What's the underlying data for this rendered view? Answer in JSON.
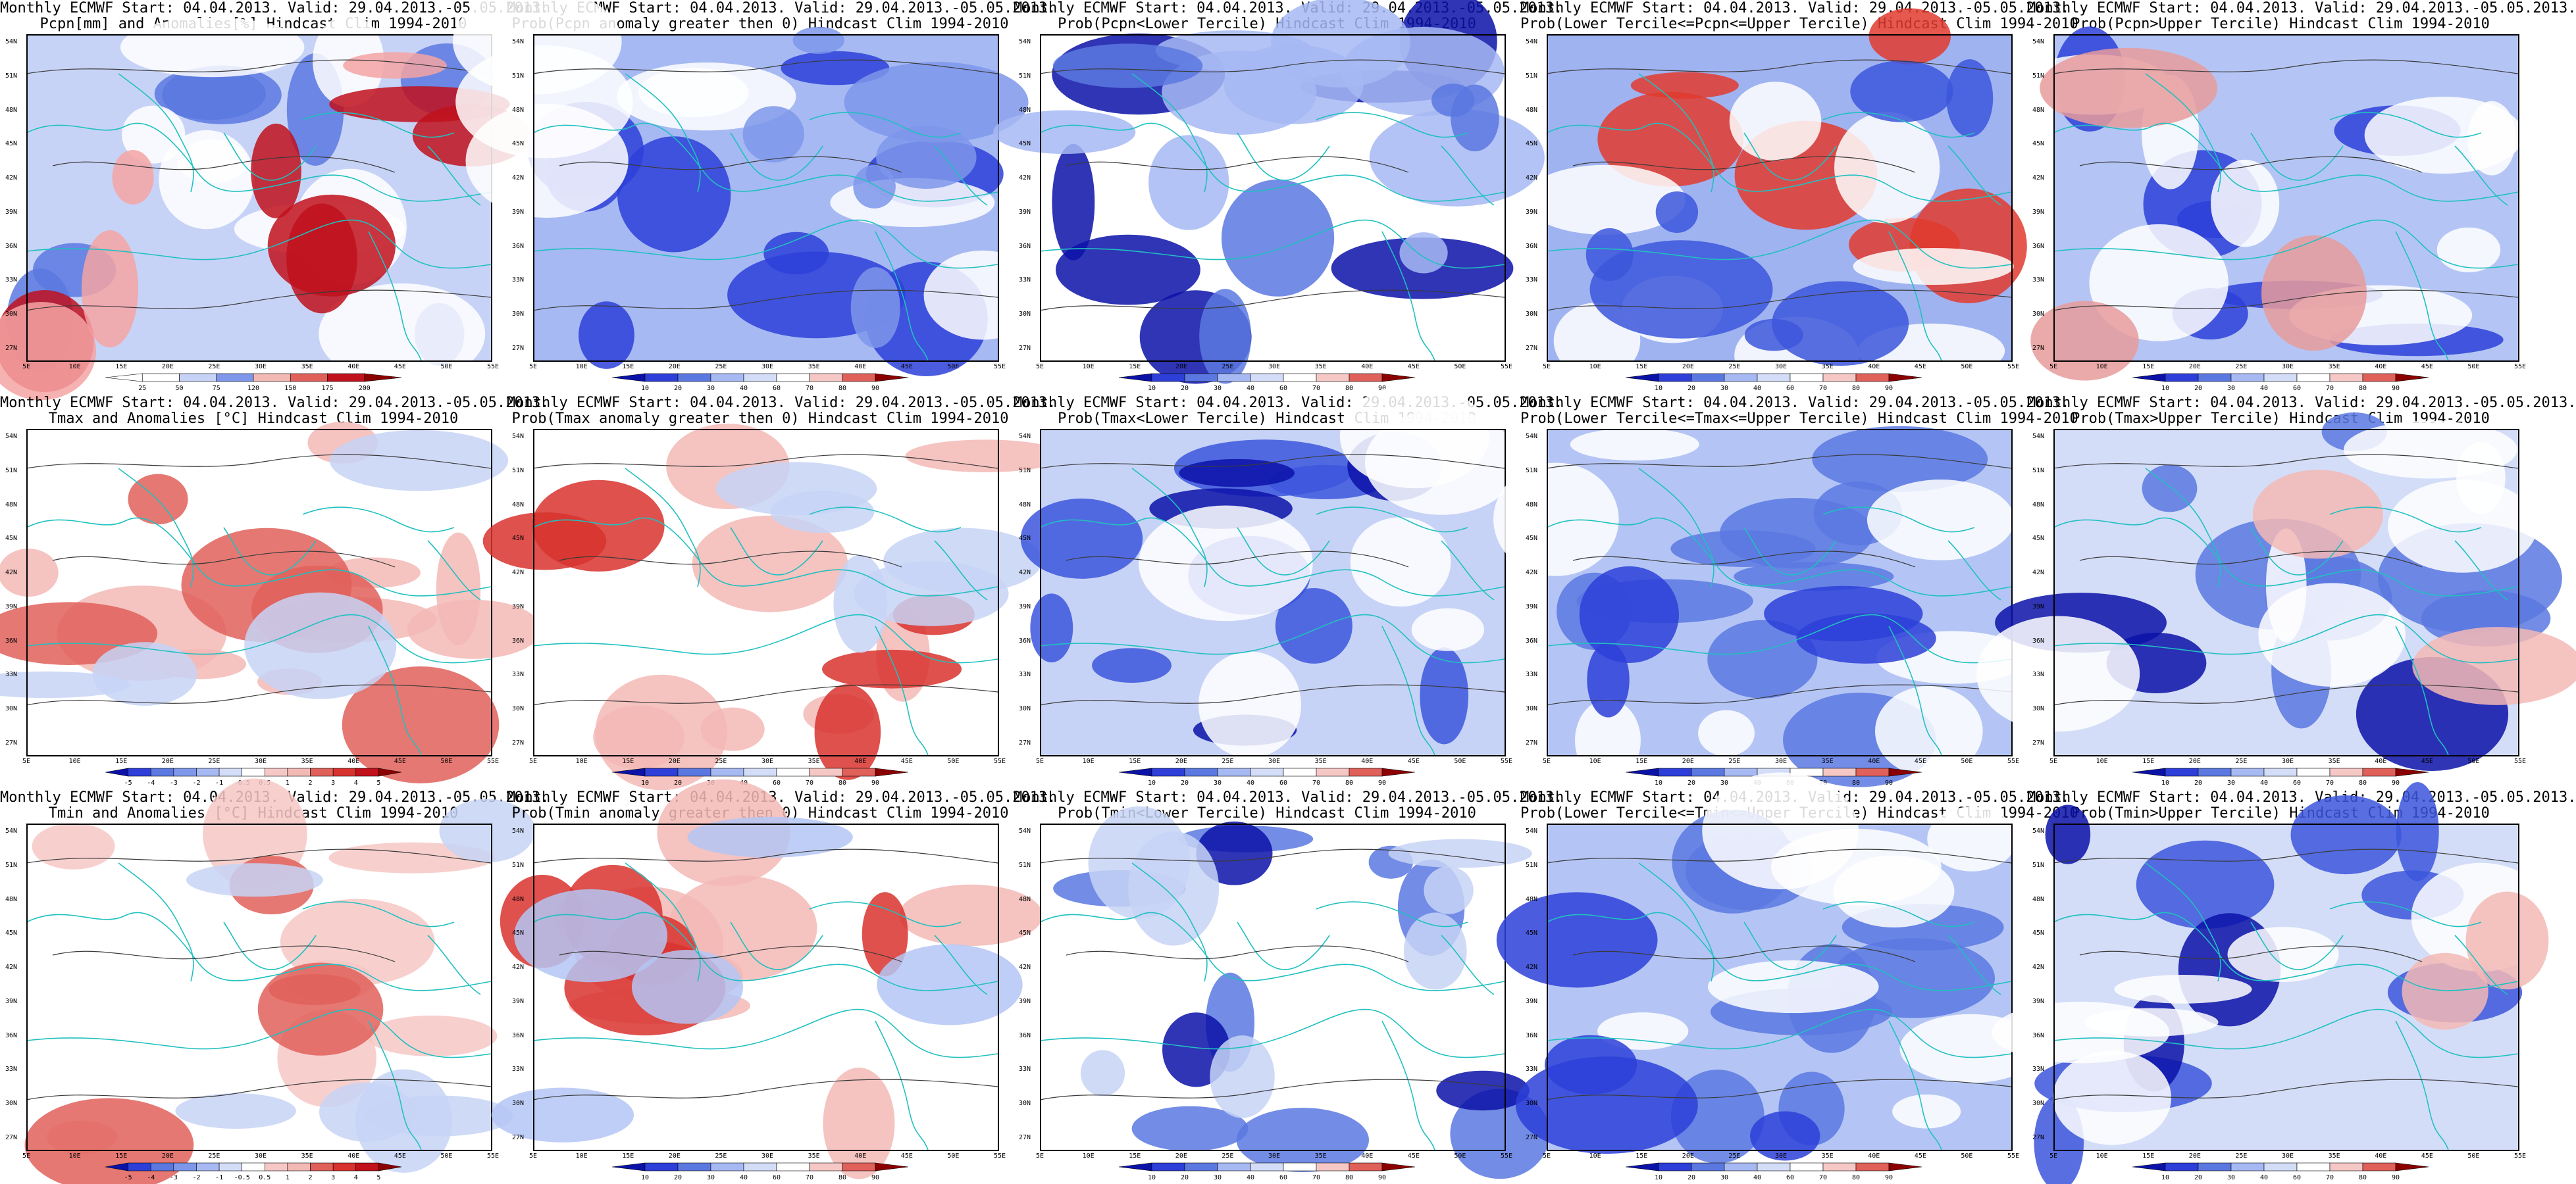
{
  "map_axes": {
    "lat_labels": [
      "54N",
      "51N",
      "48N",
      "45N",
      "42N",
      "39N",
      "36N",
      "33N",
      "30N",
      "27N"
    ],
    "lon_labels": [
      "5E",
      "10E",
      "15E",
      "20E",
      "25E",
      "30E",
      "35E",
      "40E",
      "45E",
      "50E",
      "55E"
    ]
  },
  "colors": {
    "coast": "#20c0c0",
    "contour": "#3a3a3a",
    "frame": "#000000"
  },
  "scales": {
    "pcpn_anom": [
      "25",
      "50",
      "75",
      "120",
      "150",
      "175",
      "200"
    ],
    "t_anom": [
      "-5",
      "-4",
      "-3",
      "-2",
      "-1",
      "-0.5",
      "0.5",
      "1",
      "2",
      "3",
      "4",
      "5"
    ],
    "prob": [
      "10",
      "20",
      "30",
      "40",
      "60",
      "70",
      "80",
      "90"
    ]
  },
  "panels": [
    {
      "title1": "Monthly ECMWF Start: 04.04.2013. Valid: 29.04.2013.-05.05.2013.",
      "title2": "Pcpn[mm] and Anomalies[%] Hindcast Clim 1994-2010",
      "scale": "pcpn_anom"
    },
    {
      "title1": "Monthly ECMWF Start: 04.04.2013. Valid: 29.04.2013.-05.05.2013.",
      "title2": "Prob(Pcpn anomaly greater then 0) Hindcast Clim 1994-2010",
      "scale": "prob"
    },
    {
      "title1": "Monthly ECMWF Start: 04.04.2013. Valid: 29.04.2013.-05.05.2013.",
      "title2": "Prob(Pcpn<Lower Tercile) Hindcast Clim 1994-2010",
      "scale": "prob"
    },
    {
      "title1": "Monthly ECMWF Start: 04.04.2013. Valid: 29.04.2013.-05.05.2013.",
      "title2": "Prob(Lower Tercile<=Pcpn<=Upper Tercile) Hindcast Clim 1994-2010",
      "scale": "prob"
    },
    {
      "title1": "Monthly ECMWF Start: 04.04.2013. Valid: 29.04.2013.-05.05.2013.",
      "title2": "Prob(Pcpn>Upper Tercile) Hindcast Clim 1994-2010",
      "scale": "prob"
    },
    {
      "title1": "Monthly ECMWF Start: 04.04.2013. Valid: 29.04.2013.-05.05.2013.",
      "title2": "Tmax and Anomalies [°C] Hindcast Clim 1994-2010",
      "scale": "t_anom"
    },
    {
      "title1": "Monthly ECMWF Start: 04.04.2013. Valid: 29.04.2013.-05.05.2013.",
      "title2": "Prob(Tmax anomaly greater then 0) Hindcast Clim 1994-2010",
      "scale": "prob"
    },
    {
      "title1": "Monthly ECMWF Start: 04.04.2013. Valid: 29.04.2013.-05.05.2013.",
      "title2": "Prob(Tmax<Lower Tercile) Hindcast Clim 1994-2010",
      "scale": "prob"
    },
    {
      "title1": "Monthly ECMWF Start: 04.04.2013. Valid: 29.04.2013.-05.05.2013.",
      "title2": "Prob(Lower Tercile<=Tmax<=Upper Tercile) Hindcast Clim 1994-2010",
      "scale": "prob"
    },
    {
      "title1": "Monthly ECMWF Start: 04.04.2013. Valid: 29.04.2013.-05.05.2013.",
      "title2": "Prob(Tmax>Upper Tercile) Hindcast Clim 1994-2010",
      "scale": "prob"
    },
    {
      "title1": "Monthly ECMWF Start: 04.04.2013. Valid: 29.04.2013.-05.05.2013.",
      "title2": "Tmin and Anomalies [°C] Hindcast Clim 1994-2010",
      "scale": "t_anom"
    },
    {
      "title1": "Monthly ECMWF Start: 04.04.2013. Valid: 29.04.2013.-05.05.2013.",
      "title2": "Prob(Tmin anomaly greater then 0) Hindcast Clim 1994-2010",
      "scale": "prob"
    },
    {
      "title1": "Monthly ECMWF Start: 04.04.2013. Valid: 29.04.2013.-05.05.2013.",
      "title2": "Prob(Tmin<Lower Tercile) Hindcast Clim 1994-2010",
      "scale": "prob"
    },
    {
      "title1": "Monthly ECMWF Start: 04.04.2013. Valid: 29.04.2013.-05.05.2013.",
      "title2": "Prob(Lower Tercile<=Tmin<=Upper Tercile) Hindcast Clim 1994-2010",
      "scale": "prob"
    },
    {
      "title1": "Monthly ECMWF Start: 04.04.2013. Valid: 29.04.2013.-05.05.2013.",
      "title2": "Prob(Tmin>Upper Tercile) Hindcast Clim 1994-2010",
      "scale": "prob"
    }
  ]
}
